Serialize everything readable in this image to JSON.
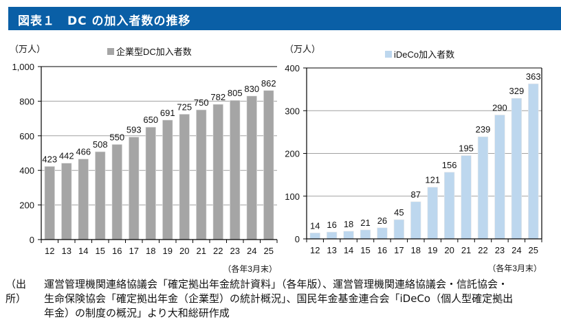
{
  "header": {
    "title": "図表１　DC の加入者数の推移"
  },
  "chart_data": [
    {
      "type": "bar",
      "title": "",
      "legend": "企業型DC加入者数",
      "legend_position": "top-center",
      "ylabel": "（万人）",
      "xlabel": "（各年3月末）",
      "categories": [
        "12",
        "13",
        "14",
        "15",
        "16",
        "17",
        "18",
        "19",
        "20",
        "21",
        "22",
        "23",
        "24",
        "25"
      ],
      "values": [
        423,
        442,
        466,
        508,
        550,
        593,
        650,
        691,
        725,
        750,
        782,
        805,
        830,
        862
      ],
      "ylim": [
        0,
        1000
      ],
      "yticks": [
        0,
        200,
        400,
        600,
        800,
        1000
      ],
      "ytick_labels": [
        "0",
        "200",
        "400",
        "600",
        "800",
        "1,000"
      ],
      "grid": true,
      "color": "#a5a5a5"
    },
    {
      "type": "bar",
      "title": "",
      "legend": "iDeCo加入者数",
      "legend_position": "top-center",
      "ylabel": "（万人）",
      "xlabel": "（各年3月末）",
      "categories": [
        "12",
        "13",
        "14",
        "15",
        "16",
        "17",
        "18",
        "19",
        "20",
        "21",
        "22",
        "23",
        "24",
        "25"
      ],
      "values": [
        14,
        16,
        18,
        21,
        26,
        45,
        87,
        121,
        156,
        195,
        239,
        290,
        329,
        363
      ],
      "ylim": [
        0,
        400
      ],
      "yticks": [
        0,
        100,
        200,
        300,
        400
      ],
      "ytick_labels": [
        "0",
        "100",
        "200",
        "300",
        "400"
      ],
      "grid": true,
      "color": "#bdd7ee"
    }
  ],
  "source": {
    "label": "（出所）",
    "lines": [
      "運営管理機関連絡協議会「確定拠出年金統計資料」（各年版）、運営管理機関連絡協議会・信託協会・",
      "生命保険協会「確定拠出年金（企業型）の統計概況」、国民年金基金連合会「iDeCo（個人型確定拠出",
      "年金）の制度の概況」より大和総研作成"
    ]
  }
}
